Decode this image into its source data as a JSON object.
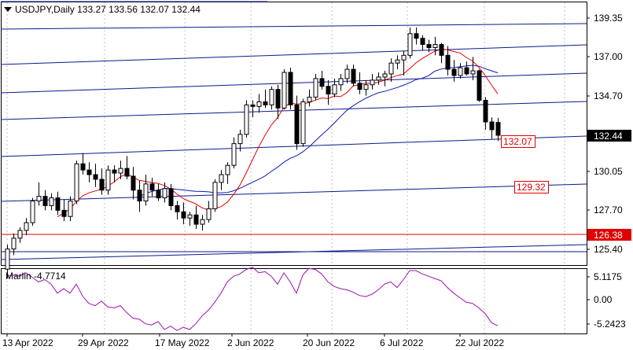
{
  "header": {
    "symbol_line": "USDJPY,Daily  133.27 133.56 132.07 132.44",
    "menu_icon": "triangle-down-icon"
  },
  "indicator": {
    "label": "Marlin -4.7714",
    "color": "#a010b0",
    "ticks": [
      "5.1175",
      "0.00",
      "-5.2423"
    ]
  },
  "price_axis": {
    "ticks": [
      "139.35",
      "137.00",
      "134.70",
      "132.44",
      "130.05",
      "127.70",
      "125.40"
    ],
    "current_price": "132.44"
  },
  "time_axis": {
    "labels": [
      "13 Apr 2022",
      "29 Apr 2022",
      "17 May 2022",
      "2 Jun 2022",
      "20 Jun 2022",
      "6 Jul 2022",
      "22 Jul 2022"
    ]
  },
  "annotations": {
    "levels": [
      {
        "label": "132.07",
        "color": "#e00000"
      },
      {
        "label": "129.32",
        "color": "#e00000"
      },
      {
        "label": "126.38",
        "color": "#e00000"
      }
    ]
  },
  "colors": {
    "candle": "#000000",
    "red_ma": "#e00000",
    "blue_ma": "#0a1ab0",
    "fan_lines": "#0a1a8a",
    "horizontal_level": "#e00000"
  },
  "chart_data": {
    "type": "candlestick",
    "symbol": "USDJPY",
    "timeframe": "Daily",
    "candles": [
      [
        123.8,
        125.4,
        123.2,
        125.1
      ],
      [
        125.1,
        126.1,
        124.7,
        125.8
      ],
      [
        125.8,
        126.5,
        125.5,
        126.3
      ],
      [
        126.3,
        127.1,
        126.0,
        126.8
      ],
      [
        126.8,
        128.4,
        126.6,
        128.2
      ],
      [
        128.2,
        129.4,
        127.9,
        128.5
      ],
      [
        128.5,
        128.9,
        127.6,
        127.9
      ],
      [
        127.9,
        128.7,
        127.6,
        128.4
      ],
      [
        128.4,
        128.8,
        127.3,
        127.6
      ],
      [
        127.6,
        128.3,
        126.9,
        127.2
      ],
      [
        127.2,
        128.5,
        126.9,
        128.2
      ],
      [
        128.2,
        130.8,
        128.0,
        130.6
      ],
      [
        130.6,
        131.3,
        129.9,
        130.2
      ],
      [
        130.2,
        130.7,
        129.4,
        129.9
      ],
      [
        129.9,
        130.6,
        129.1,
        129.6
      ],
      [
        129.6,
        130.3,
        128.6,
        128.9
      ],
      [
        128.9,
        130.5,
        128.6,
        130.2
      ],
      [
        130.2,
        130.5,
        129.4,
        130.0
      ],
      [
        130.0,
        130.8,
        129.6,
        130.3
      ],
      [
        130.3,
        131.1,
        129.6,
        129.8
      ],
      [
        129.8,
        130.4,
        128.3,
        128.9
      ],
      [
        128.9,
        129.5,
        127.5,
        128.2
      ],
      [
        128.2,
        129.9,
        127.9,
        129.3
      ],
      [
        129.3,
        129.7,
        128.5,
        128.9
      ],
      [
        128.9,
        129.3,
        128.2,
        128.4
      ],
      [
        128.4,
        129.4,
        128.1,
        129.0
      ],
      [
        129.0,
        129.3,
        127.6,
        127.9
      ],
      [
        127.9,
        128.2,
        127.0,
        127.5
      ],
      [
        127.5,
        128.1,
        126.7,
        127.1
      ],
      [
        127.1,
        127.5,
        126.6,
        127.3
      ],
      [
        127.3,
        127.9,
        126.4,
        126.7
      ],
      [
        126.7,
        127.3,
        126.3,
        127.0
      ],
      [
        127.0,
        128.2,
        126.8,
        127.7
      ],
      [
        127.7,
        129.6,
        127.5,
        129.4
      ],
      [
        129.4,
        130.2,
        128.9,
        129.9
      ],
      [
        129.9,
        130.7,
        129.3,
        130.5
      ],
      [
        130.5,
        132.3,
        130.3,
        131.9
      ],
      [
        131.9,
        132.8,
        131.4,
        132.5
      ],
      [
        132.5,
        134.7,
        132.3,
        134.4
      ],
      [
        134.4,
        134.7,
        133.6,
        134.3
      ],
      [
        134.3,
        135.1,
        133.9,
        134.6
      ],
      [
        134.6,
        135.4,
        134.2,
        134.4
      ],
      [
        134.4,
        135.6,
        134.1,
        135.4
      ],
      [
        135.4,
        135.7,
        133.5,
        134.2
      ],
      [
        134.2,
        136.7,
        134.1,
        136.5
      ],
      [
        136.5,
        136.8,
        134.1,
        134.4
      ],
      [
        134.4,
        135.0,
        131.5,
        131.9
      ],
      [
        131.9,
        134.8,
        131.7,
        134.6
      ],
      [
        134.6,
        135.4,
        134.3,
        134.9
      ],
      [
        134.9,
        136.4,
        134.7,
        136.1
      ],
      [
        136.1,
        136.6,
        135.4,
        135.6
      ],
      [
        135.6,
        136.0,
        134.4,
        135.1
      ],
      [
        135.1,
        136.1,
        134.9,
        135.7
      ],
      [
        135.7,
        136.4,
        135.3,
        136.1
      ],
      [
        136.1,
        137.0,
        135.8,
        136.7
      ],
      [
        136.7,
        137.0,
        135.6,
        135.8
      ],
      [
        135.8,
        136.5,
        135.1,
        135.4
      ],
      [
        135.4,
        136.0,
        135.0,
        135.7
      ],
      [
        135.7,
        136.4,
        135.4,
        136.0
      ],
      [
        136.0,
        136.5,
        135.7,
        136.2
      ],
      [
        136.2,
        136.6,
        135.6,
        136.4
      ],
      [
        136.4,
        137.4,
        135.9,
        137.1
      ],
      [
        137.1,
        137.6,
        136.7,
        137.3
      ],
      [
        137.3,
        137.9,
        136.3,
        137.6
      ],
      [
        137.6,
        139.4,
        137.4,
        139.0
      ],
      [
        139.0,
        139.4,
        138.3,
        138.7
      ],
      [
        138.7,
        138.9,
        137.9,
        138.3
      ],
      [
        138.3,
        138.6,
        137.8,
        138.1
      ],
      [
        138.1,
        138.8,
        137.6,
        138.3
      ],
      [
        138.3,
        138.4,
        137.1,
        137.6
      ],
      [
        137.6,
        138.2,
        136.3,
        136.7
      ],
      [
        136.7,
        137.3,
        135.9,
        136.3
      ],
      [
        136.3,
        137.1,
        136.1,
        136.8
      ],
      [
        136.8,
        137.2,
        136.3,
        136.4
      ],
      [
        136.4,
        137.5,
        136.0,
        136.6
      ],
      [
        136.6,
        136.7,
        134.6,
        134.7
      ],
      [
        134.7,
        134.9,
        132.8,
        133.3
      ],
      [
        133.3,
        133.6,
        132.2,
        132.8
      ],
      [
        133.27,
        133.56,
        132.07,
        132.44
      ]
    ],
    "indicator_name": "Marlin",
    "indicator_value": -4.7714,
    "horizontal_level": 126.38,
    "target_labels": [
      132.07,
      129.32,
      126.38
    ]
  }
}
